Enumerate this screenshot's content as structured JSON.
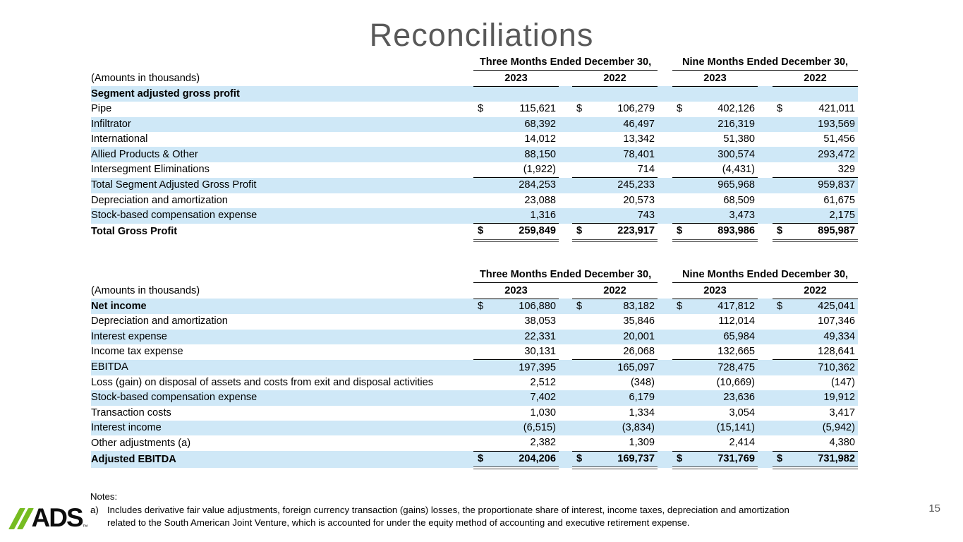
{
  "slide": {
    "title": "Reconciliations",
    "page_number": "15",
    "notes_label": "Notes:",
    "note_a_marker": "a)",
    "note_a_line1": "Includes derivative fair value adjustments, foreign currency transaction (gains) losses, the proportionate share of interest, income taxes, depreciation and amortization",
    "note_a_line2": "related to the South American Joint Venture, which is accounted for under the equity method of accounting and executive retirement expense.",
    "logo_text": "ADS",
    "logo_tm": "™"
  },
  "colors": {
    "row_highlight": "#cfe8f7",
    "title_gray": "#595959",
    "logo_green": "#76bc21"
  },
  "tables": [
    {
      "name": "segment-adjusted-gross-profit-reconciliation",
      "amounts_label": "(Amounts in thousands)",
      "group_headers": [
        "Three Months Ended December 30,",
        "Nine Months Ended December 30,"
      ],
      "year_headers": [
        "2023",
        "2022",
        "2023",
        "2022"
      ],
      "rows": [
        {
          "label": "Segment adjusted gross profit",
          "indent": 0,
          "shaded": true,
          "bold_label": true,
          "bold_values": false,
          "dollar": false,
          "rule": null,
          "values": [
            "",
            "",
            "",
            ""
          ]
        },
        {
          "label": "Pipe",
          "indent": 1,
          "shaded": false,
          "bold_label": false,
          "bold_values": false,
          "dollar": true,
          "rule": null,
          "values": [
            "115,621",
            "106,279",
            "402,126",
            "421,011"
          ]
        },
        {
          "label": "Infiltrator",
          "indent": 1,
          "shaded": true,
          "bold_label": false,
          "bold_values": false,
          "dollar": false,
          "rule": null,
          "values": [
            "68,392",
            "46,497",
            "216,319",
            "193,569"
          ]
        },
        {
          "label": "International",
          "indent": 1,
          "shaded": false,
          "bold_label": false,
          "bold_values": false,
          "dollar": false,
          "rule": null,
          "values": [
            "14,012",
            "13,342",
            "51,380",
            "51,456"
          ]
        },
        {
          "label": "Allied Products & Other",
          "indent": 1,
          "shaded": true,
          "bold_label": false,
          "bold_values": false,
          "dollar": false,
          "rule": null,
          "values": [
            "88,150",
            "78,401",
            "300,574",
            "293,472"
          ]
        },
        {
          "label": "Intersegment Eliminations",
          "indent": 1,
          "shaded": false,
          "bold_label": false,
          "bold_values": false,
          "dollar": false,
          "rule": "under",
          "values": [
            "(1,922)",
            "714",
            "(4,431)",
            "329"
          ]
        },
        {
          "label": "Total Segment Adjusted Gross Profit",
          "indent": 2,
          "shaded": true,
          "bold_label": false,
          "bold_values": false,
          "dollar": false,
          "rule": null,
          "values": [
            "284,253",
            "245,233",
            "965,968",
            "959,837"
          ]
        },
        {
          "label": "Depreciation and amortization",
          "indent": 1,
          "shaded": false,
          "bold_label": false,
          "bold_values": false,
          "dollar": false,
          "rule": null,
          "values": [
            "23,088",
            "20,573",
            "68,509",
            "61,675"
          ]
        },
        {
          "label": "Stock-based compensation expense",
          "indent": 1,
          "shaded": true,
          "bold_label": false,
          "bold_values": false,
          "dollar": false,
          "rule": "under",
          "values": [
            "1,316",
            "743",
            "3,473",
            "2,175"
          ]
        },
        {
          "label": "Total Gross Profit",
          "indent": 2,
          "shaded": false,
          "bold_label": true,
          "bold_values": true,
          "dollar": true,
          "rule": "total",
          "values": [
            "259,849",
            "223,917",
            "893,986",
            "895,987"
          ]
        }
      ]
    },
    {
      "name": "adjusted-ebitda-reconciliation",
      "amounts_label": "(Amounts in thousands)",
      "group_headers": [
        "Three Months Ended December 30,",
        "Nine Months Ended December 30,"
      ],
      "year_headers": [
        "2023",
        "2022",
        "2023",
        "2022"
      ],
      "rows": [
        {
          "label": "Net income",
          "indent": 0,
          "shaded": true,
          "bold_label": true,
          "bold_values": false,
          "dollar": true,
          "rule": null,
          "values": [
            "106,880",
            "83,182",
            "417,812",
            "425,041"
          ]
        },
        {
          "label": "Depreciation and amortization",
          "indent": 1,
          "shaded": false,
          "bold_label": false,
          "bold_values": false,
          "dollar": false,
          "rule": null,
          "values": [
            "38,053",
            "35,846",
            "112,014",
            "107,346"
          ]
        },
        {
          "label": "Interest expense",
          "indent": 1,
          "shaded": true,
          "bold_label": false,
          "bold_values": false,
          "dollar": false,
          "rule": null,
          "values": [
            "22,331",
            "20,001",
            "65,984",
            "49,334"
          ]
        },
        {
          "label": "Income tax expense",
          "indent": 1,
          "shaded": false,
          "bold_label": false,
          "bold_values": false,
          "dollar": false,
          "rule": "under",
          "values": [
            "30,131",
            "26,068",
            "132,665",
            "128,641"
          ]
        },
        {
          "label": "EBITDA",
          "indent": 0,
          "shaded": true,
          "bold_label": false,
          "bold_values": false,
          "dollar": false,
          "rule": null,
          "values": [
            "197,395",
            "165,097",
            "728,475",
            "710,362"
          ]
        },
        {
          "label": "Loss (gain) on disposal of assets and costs from exit and disposal activities",
          "indent": 1,
          "shaded": false,
          "bold_label": false,
          "bold_values": false,
          "dollar": false,
          "rule": null,
          "values": [
            "2,512",
            "(348)",
            "(10,669)",
            "(147)"
          ]
        },
        {
          "label": "Stock-based compensation expense",
          "indent": 1,
          "shaded": true,
          "bold_label": false,
          "bold_values": false,
          "dollar": false,
          "rule": null,
          "values": [
            "7,402",
            "6,179",
            "23,636",
            "19,912"
          ]
        },
        {
          "label": "Transaction costs",
          "indent": 1,
          "shaded": false,
          "bold_label": false,
          "bold_values": false,
          "dollar": false,
          "rule": null,
          "values": [
            "1,030",
            "1,334",
            "3,054",
            "3,417"
          ]
        },
        {
          "label": "Interest income",
          "indent": 1,
          "shaded": true,
          "bold_label": false,
          "bold_values": false,
          "dollar": false,
          "rule": null,
          "values": [
            "(6,515)",
            "(3,834)",
            "(15,141)",
            "(5,942)"
          ]
        },
        {
          "label": "Other adjustments (a)",
          "indent": 1,
          "shaded": false,
          "bold_label": false,
          "bold_values": false,
          "dollar": false,
          "rule": "under",
          "values": [
            "2,382",
            "1,309",
            "2,414",
            "4,380"
          ]
        },
        {
          "label": "Adjusted EBITDA",
          "indent": 0,
          "shaded": true,
          "bold_label": true,
          "bold_values": true,
          "dollar": true,
          "rule": "total",
          "values": [
            "204,206",
            "169,737",
            "731,769",
            "731,982"
          ]
        }
      ]
    }
  ]
}
